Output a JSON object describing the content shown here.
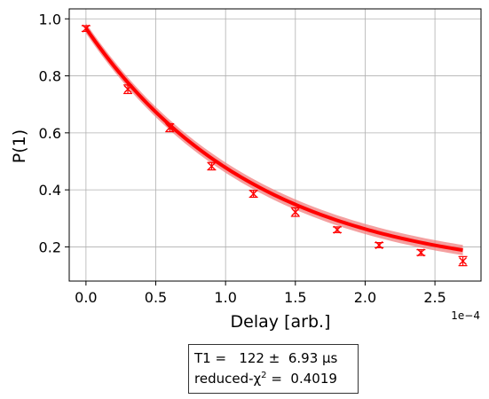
{
  "chart_data": {
    "type": "scatter",
    "title": "",
    "xlabel": "Delay [arb.]",
    "ylabel": "P(1)",
    "x_offset_label": "1e−4",
    "x_scale": 0.0001,
    "xlim": [
      -0.12,
      2.83
    ],
    "ylim": [
      0.08,
      1.035
    ],
    "xticks": [
      0.0,
      0.5,
      1.0,
      1.5,
      2.0,
      2.5
    ],
    "xtick_labels": [
      "0.0",
      "0.5",
      "1.0",
      "1.5",
      "2.0",
      "2.5"
    ],
    "yticks": [
      0.2,
      0.4,
      0.6,
      0.8,
      1.0
    ],
    "ytick_labels": [
      "0.2",
      "0.4",
      "0.6",
      "0.8",
      "1.0"
    ],
    "grid": true,
    "colors": {
      "data": "#ff0000",
      "fit": "#ff0000",
      "band": "#f08080"
    },
    "series": [
      {
        "kind": "measured",
        "x": [
          0.0,
          0.3,
          0.6,
          0.9,
          1.2,
          1.5,
          1.8,
          2.1,
          2.4,
          2.7
        ],
        "y": [
          0.966,
          0.753,
          0.618,
          0.483,
          0.386,
          0.322,
          0.26,
          0.206,
          0.18,
          0.15
        ],
        "yerr": [
          0.01,
          0.015,
          0.014,
          0.013,
          0.012,
          0.015,
          0.01,
          0.009,
          0.01,
          0.016
        ]
      },
      {
        "kind": "fit",
        "model": "exponential decay",
        "amplitude": 0.874,
        "tau": 1.22,
        "offset": 0.093,
        "band_halfwidth": 0.018
      }
    ]
  },
  "fitbox": {
    "line1": "T1 =   122 ±  6.93 µs",
    "line2_prefix": "reduced-χ",
    "line2_sup": "2",
    "line2_suffix": " =  0.4019"
  }
}
